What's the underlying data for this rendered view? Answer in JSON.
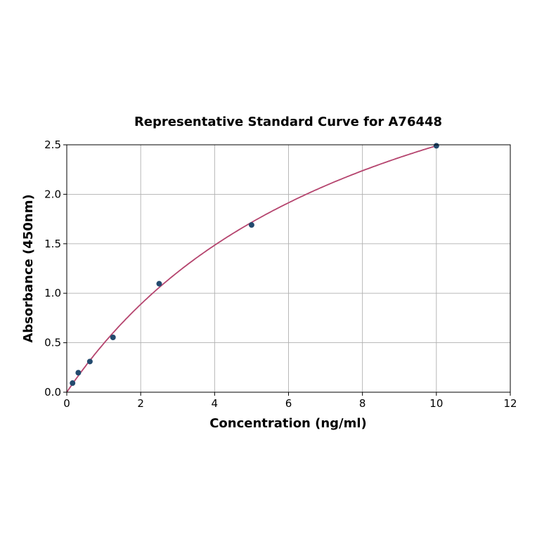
{
  "chart_data": {
    "type": "scatter",
    "title": "Representative Standard Curve for A76448",
    "xlabel": "Concentration (ng/ml)",
    "ylabel": "Absorbance (450nm)",
    "xlim": [
      0,
      12
    ],
    "ylim": [
      0,
      2.5
    ],
    "xticks": [
      0,
      2,
      4,
      6,
      8,
      10,
      12
    ],
    "yticks": [
      0.0,
      0.5,
      1.0,
      1.5,
      2.0,
      2.5
    ],
    "xtick_labels": [
      "0",
      "2",
      "4",
      "6",
      "8",
      "10",
      "12"
    ],
    "ytick_labels": [
      "0.0",
      "0.5",
      "1.0",
      "1.5",
      "2.0",
      "2.5"
    ],
    "grid": true,
    "legend": "none",
    "points": {
      "x": [
        0.156,
        0.312,
        0.625,
        1.25,
        2.5,
        5,
        10
      ],
      "y": [
        0.092,
        0.197,
        0.31,
        0.554,
        1.096,
        1.69,
        2.49
      ]
    },
    "fit_curve": true,
    "colors": {
      "points": "#234a6e",
      "curve": "#b5446e",
      "grid": "#b0b0b0"
    }
  }
}
